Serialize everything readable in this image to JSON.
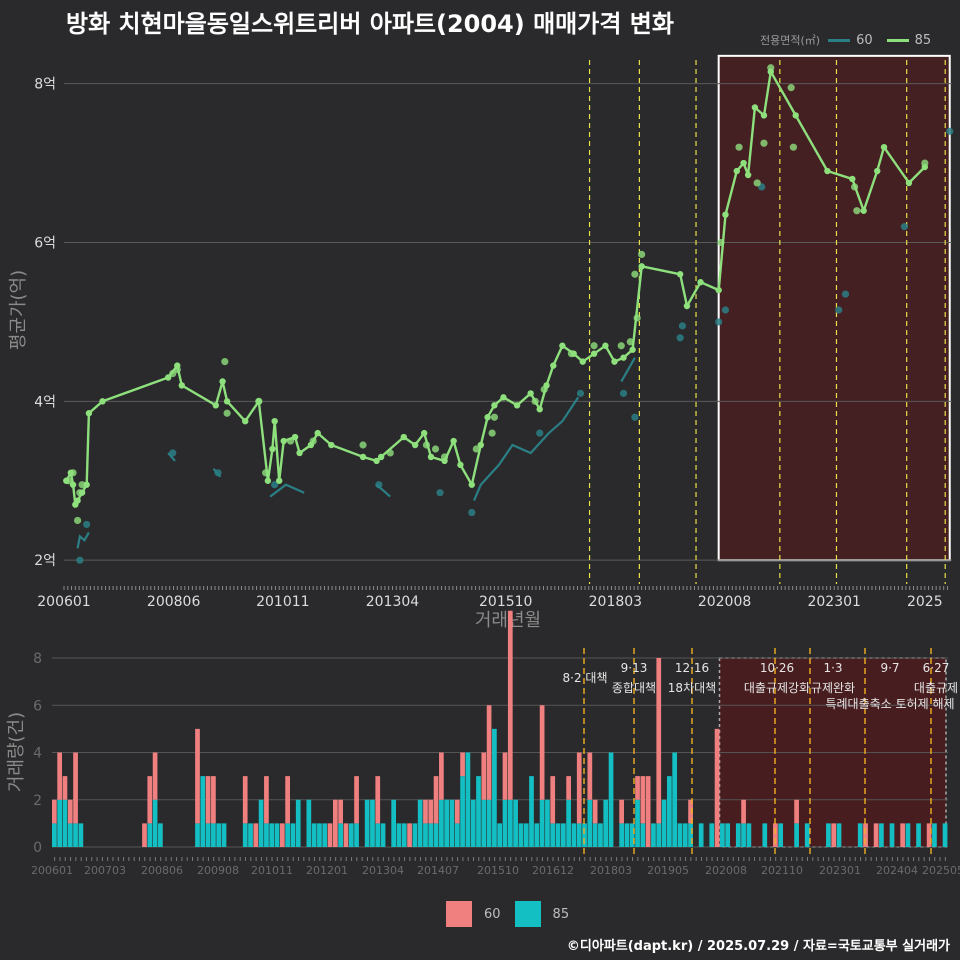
{
  "title": "방화 치현마을동일스위트리버 아파트(2004) 매매가격 변화",
  "credit": "©디아파트(dapt.kr) / 2025.07.29 / 자료=국토교통부 실거래가",
  "colors": {
    "bg": "#2a2a2c",
    "line60": "#2a7f85",
    "line85": "#8ee07d",
    "bar60": "#f08080",
    "bar85": "#14bfc4",
    "highlight": "#4a1f22",
    "event_line": "#e8e04a",
    "event_line_bar": "#f0b020"
  },
  "top_legend": {
    "title": "전용면적(㎡)",
    "items": [
      {
        "label": "60",
        "color": "#2a7f85"
      },
      {
        "label": "85",
        "color": "#8ee07d"
      }
    ]
  },
  "bottom_legend": {
    "items": [
      {
        "label": "60",
        "color": "#f08080"
      },
      {
        "label": "85",
        "color": "#14bfc4"
      }
    ]
  },
  "chart_data": [
    {
      "type": "line",
      "title": "방화 치현마을동일스위트리버 아파트(2004) 매매가격 변화",
      "xlabel": "거래년월",
      "ylabel": "평균가(억)",
      "x_ticks": [
        "200601",
        "200806",
        "201011",
        "201304",
        "201510",
        "201803",
        "202008",
        "202301",
        "2025"
      ],
      "y_ticks": [
        "2억",
        "4억",
        "6억",
        "8억"
      ],
      "xlim": [
        2006.0,
        2025.6
      ],
      "ylim": [
        1.7,
        8.6
      ],
      "grid": true,
      "legend_position": "top-right",
      "highlight_region": {
        "x": [
          2020.45,
          2025.55
        ],
        "y": [
          2.0,
          8.35
        ]
      },
      "event_lines_x": [
        2017.6,
        2018.7,
        2019.95,
        2021.8,
        2023.05,
        2024.6,
        2025.45
      ],
      "series": [
        {
          "name": "85",
          "points": [
            [
              2006.05,
              3.0
            ],
            [
              2006.15,
              3.1
            ],
            [
              2006.2,
              2.95
            ],
            [
              2006.25,
              2.7
            ],
            [
              2006.3,
              2.75
            ],
            [
              2006.4,
              2.85
            ],
            [
              2006.5,
              2.95
            ],
            [
              2006.55,
              3.85
            ],
            [
              2006.85,
              4.0
            ],
            [
              2008.3,
              4.3
            ],
            [
              2008.5,
              4.45
            ],
            [
              2008.6,
              4.2
            ],
            [
              2009.35,
              3.95
            ],
            [
              2009.5,
              4.25
            ],
            [
              2009.6,
              4.0
            ],
            [
              2010.0,
              3.75
            ],
            [
              2010.3,
              4.0
            ],
            [
              2010.5,
              3.0
            ],
            [
              2010.6,
              3.4
            ],
            [
              2010.65,
              3.75
            ],
            [
              2010.75,
              3.0
            ],
            [
              2010.85,
              3.5
            ],
            [
              2011.1,
              3.55
            ],
            [
              2011.2,
              3.35
            ],
            [
              2011.45,
              3.45
            ],
            [
              2011.6,
              3.6
            ],
            [
              2011.9,
              3.45
            ],
            [
              2012.6,
              3.3
            ],
            [
              2012.9,
              3.25
            ],
            [
              2013.0,
              3.3
            ],
            [
              2013.5,
              3.55
            ],
            [
              2013.75,
              3.45
            ],
            [
              2013.95,
              3.6
            ],
            [
              2014.1,
              3.3
            ],
            [
              2014.4,
              3.25
            ],
            [
              2014.6,
              3.5
            ],
            [
              2014.75,
              3.2
            ],
            [
              2015.0,
              2.95
            ],
            [
              2015.2,
              3.45
            ],
            [
              2015.35,
              3.8
            ],
            [
              2015.5,
              3.95
            ],
            [
              2015.7,
              4.05
            ],
            [
              2016.0,
              3.95
            ],
            [
              2016.3,
              4.1
            ],
            [
              2016.5,
              3.9
            ],
            [
              2016.65,
              4.2
            ],
            [
              2016.8,
              4.45
            ],
            [
              2017.0,
              4.7
            ],
            [
              2017.25,
              4.6
            ],
            [
              2017.45,
              4.5
            ],
            [
              2017.7,
              4.6
            ],
            [
              2017.95,
              4.7
            ],
            [
              2018.15,
              4.5
            ],
            [
              2018.35,
              4.55
            ],
            [
              2018.55,
              4.65
            ],
            [
              2018.75,
              5.7
            ],
            [
              2019.6,
              5.6
            ],
            [
              2019.75,
              5.2
            ],
            [
              2020.05,
              5.5
            ],
            [
              2020.45,
              5.4
            ],
            [
              2020.6,
              6.35
            ],
            [
              2020.85,
              6.9
            ],
            [
              2021.0,
              7.0
            ],
            [
              2021.1,
              6.85
            ],
            [
              2021.25,
              7.7
            ],
            [
              2021.45,
              7.6
            ],
            [
              2021.6,
              8.15
            ],
            [
              2022.15,
              7.6
            ],
            [
              2022.85,
              6.9
            ],
            [
              2023.4,
              6.8
            ],
            [
              2023.65,
              6.4
            ],
            [
              2023.95,
              6.9
            ],
            [
              2024.1,
              7.2
            ],
            [
              2024.65,
              6.75
            ],
            [
              2025.0,
              6.95
            ]
          ]
        },
        {
          "name": "60",
          "points": [
            [
              2006.3,
              2.15
            ],
            [
              2006.35,
              2.3
            ],
            [
              2006.45,
              2.25
            ],
            [
              2006.55,
              2.35
            ],
            [
              2008.3,
              3.35
            ],
            [
              2008.45,
              3.25
            ],
            [
              2009.3,
              3.15
            ],
            [
              2009.45,
              3.05
            ],
            [
              2010.55,
              2.8
            ],
            [
              2010.9,
              2.95
            ],
            [
              2011.3,
              2.85
            ],
            [
              2012.9,
              2.95
            ],
            [
              2013.2,
              2.8
            ],
            [
              2014.1,
              2.95
            ],
            [
              2015.05,
              2.75
            ],
            [
              2015.2,
              2.95
            ],
            [
              2015.6,
              3.2
            ],
            [
              2015.9,
              3.45
            ],
            [
              2016.3,
              3.35
            ],
            [
              2016.7,
              3.6
            ],
            [
              2017.0,
              3.75
            ],
            [
              2017.35,
              4.05
            ],
            [
              2018.3,
              4.25
            ],
            [
              2018.6,
              4.55
            ]
          ]
        }
      ],
      "scatter_85": [
        [
          2006.1,
          3.0
        ],
        [
          2006.2,
          3.1
        ],
        [
          2006.35,
          2.85
        ],
        [
          2006.4,
          2.95
        ],
        [
          2006.3,
          2.5
        ],
        [
          2008.4,
          4.35
        ],
        [
          2008.5,
          4.4
        ],
        [
          2009.55,
          4.5
        ],
        [
          2009.6,
          3.85
        ],
        [
          2010.3,
          4.0
        ],
        [
          2010.45,
          3.1
        ],
        [
          2011.0,
          3.5
        ],
        [
          2011.5,
          3.5
        ],
        [
          2012.6,
          3.45
        ],
        [
          2013.2,
          3.35
        ],
        [
          2014.0,
          3.45
        ],
        [
          2014.2,
          3.4
        ],
        [
          2014.4,
          3.3
        ],
        [
          2015.1,
          3.4
        ],
        [
          2015.45,
          3.6
        ],
        [
          2015.5,
          3.8
        ],
        [
          2016.4,
          4.0
        ],
        [
          2016.6,
          4.15
        ],
        [
          2017.2,
          4.6
        ],
        [
          2017.7,
          4.7
        ],
        [
          2018.3,
          4.7
        ],
        [
          2018.5,
          4.75
        ],
        [
          2018.65,
          5.05
        ],
        [
          2018.75,
          5.85
        ],
        [
          2018.6,
          5.6
        ],
        [
          2020.5,
          6.0
        ],
        [
          2020.9,
          7.2
        ],
        [
          2021.3,
          6.75
        ],
        [
          2021.45,
          7.25
        ],
        [
          2021.6,
          8.2
        ],
        [
          2022.05,
          7.95
        ],
        [
          2022.1,
          7.2
        ],
        [
          2023.45,
          6.7
        ],
        [
          2023.5,
          6.4
        ],
        [
          2025.0,
          7.0
        ]
      ],
      "scatter_60": [
        [
          2006.35,
          2.0
        ],
        [
          2006.5,
          2.45
        ],
        [
          2008.4,
          3.35
        ],
        [
          2009.4,
          3.1
        ],
        [
          2010.65,
          2.95
        ],
        [
          2012.95,
          2.95
        ],
        [
          2014.3,
          2.85
        ],
        [
          2015.0,
          2.6
        ],
        [
          2016.5,
          3.6
        ],
        [
          2017.4,
          4.1
        ],
        [
          2018.35,
          4.1
        ],
        [
          2018.6,
          3.8
        ],
        [
          2019.6,
          4.8
        ],
        [
          2019.65,
          4.95
        ],
        [
          2020.45,
          5.0
        ],
        [
          2020.6,
          5.15
        ],
        [
          2021.4,
          6.7
        ],
        [
          2023.1,
          5.15
        ],
        [
          2023.25,
          5.35
        ],
        [
          2024.55,
          6.2
        ],
        [
          2025.55,
          7.4
        ]
      ]
    },
    {
      "type": "bar",
      "ylabel": "거래량(건)",
      "x_ticks": [
        "200601",
        "200703",
        "200806",
        "200908",
        "201011",
        "201201",
        "201304",
        "201407",
        "201510",
        "201612",
        "201803",
        "201905",
        "202008",
        "202110",
        "202301",
        "202404",
        "202505"
      ],
      "y_ticks": [
        "0",
        "2",
        "4",
        "6",
        "8"
      ],
      "ylim": [
        0,
        8
      ],
      "legend_position": "bottom",
      "series": [
        {
          "name": "60",
          "values": [
            1,
            2,
            1,
            1,
            3,
            0,
            0,
            0,
            0,
            0,
            0,
            0,
            0,
            0,
            0,
            0,
            0,
            1,
            2,
            2,
            0,
            0,
            0,
            0,
            0,
            0,
            0,
            4,
            0,
            2,
            2,
            0,
            0,
            0,
            0,
            0,
            2,
            0,
            1,
            0,
            2,
            0,
            0,
            1,
            2,
            0,
            0,
            0,
            0,
            0,
            0,
            0,
            1,
            2,
            1,
            1,
            0,
            2,
            0,
            0,
            0,
            2,
            0,
            0,
            0,
            0,
            0,
            1,
            0,
            0,
            1,
            1,
            2,
            2,
            0,
            0,
            1,
            1,
            0,
            0,
            0,
            2,
            4,
            0,
            0,
            2,
            8,
            0,
            0,
            0,
            0,
            0,
            4,
            0,
            2,
            0,
            0,
            1,
            0,
            3,
            0,
            2,
            1,
            0,
            0,
            0,
            0,
            1,
            0,
            0,
            1,
            2,
            3,
            0,
            7,
            0,
            0,
            0,
            0,
            0,
            1,
            0,
            0,
            0,
            0,
            5,
            0,
            0,
            0,
            0,
            1,
            0,
            0,
            0,
            0,
            0,
            1,
            0,
            0,
            0,
            1,
            0,
            0,
            0,
            0,
            0,
            0,
            1,
            0,
            0,
            0,
            0,
            0,
            1,
            0,
            1,
            0,
            0,
            0,
            0,
            1,
            0,
            0,
            0,
            0,
            1,
            0,
            0,
            0
          ]
        },
        {
          "name": "85",
          "values": [
            1,
            2,
            2,
            1,
            1,
            1,
            0,
            0,
            0,
            0,
            0,
            0,
            0,
            0,
            0,
            0,
            0,
            0,
            1,
            2,
            1,
            0,
            0,
            0,
            0,
            0,
            0,
            1,
            3,
            1,
            1,
            1,
            1,
            0,
            0,
            0,
            1,
            1,
            0,
            2,
            1,
            1,
            1,
            0,
            1,
            1,
            2,
            0,
            2,
            1,
            1,
            1,
            0,
            0,
            1,
            0,
            1,
            1,
            0,
            2,
            2,
            1,
            1,
            0,
            2,
            1,
            1,
            0,
            1,
            2,
            1,
            1,
            1,
            2,
            2,
            2,
            1,
            3,
            4,
            2,
            3,
            2,
            2,
            5,
            1,
            2,
            2,
            2,
            1,
            1,
            3,
            1,
            2,
            2,
            1,
            1,
            1,
            2,
            1,
            1,
            1,
            2,
            1,
            1,
            2,
            4,
            0,
            1,
            1,
            1,
            2,
            1,
            0,
            1,
            1,
            2,
            3,
            4,
            1,
            1,
            1,
            0,
            1,
            0,
            1,
            0,
            1,
            1,
            0,
            1,
            1,
            1,
            0,
            0,
            1,
            0,
            0,
            1,
            0,
            0,
            1,
            0,
            1,
            0,
            0,
            0,
            1,
            0,
            1,
            0,
            0,
            0,
            1,
            0,
            0,
            0,
            1,
            0,
            1,
            0,
            0,
            1,
            0,
            1,
            0,
            0,
            1,
            0,
            1
          ]
        }
      ],
      "event_labels": [
        {
          "date": "8·2 대책",
          "sub": ""
        },
        {
          "date": "9·13",
          "sub": "종합대책"
        },
        {
          "date": "12·16",
          "sub": "18차대책"
        },
        {
          "date": "10·26",
          "sub": "대출규제강화"
        },
        {
          "date": "1·3",
          "sub": "규제완화"
        },
        {
          "date": "9·7",
          "sub": "특례대출축소 토허제 해제"
        },
        {
          "date": "6·27",
          "sub": "대출규제"
        }
      ]
    }
  ]
}
